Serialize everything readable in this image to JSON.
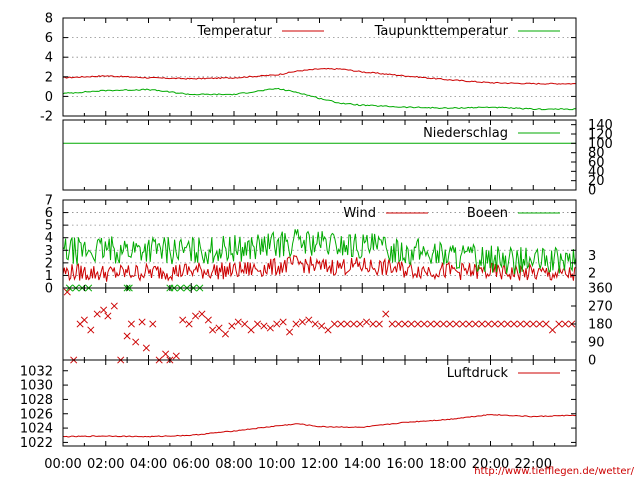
{
  "chart_data": [
    {
      "type": "line",
      "title": "",
      "xlabel": "",
      "ylabel": "",
      "ylim": [
        -2,
        8
      ],
      "yticks": [
        "-2",
        "0",
        "2",
        "4",
        "6",
        "8"
      ],
      "grid": true,
      "legend": "top-right",
      "series": [
        {
          "name": "Temperatur",
          "color": "#cc0000",
          "x": [
            0,
            2,
            4,
            6,
            8,
            10,
            11,
            12,
            13,
            14,
            16,
            18,
            20,
            22,
            24
          ],
          "values": [
            1.9,
            2.1,
            1.9,
            1.8,
            1.9,
            2.2,
            2.6,
            2.8,
            2.8,
            2.5,
            2.1,
            1.7,
            1.4,
            1.3,
            1.3
          ]
        },
        {
          "name": "Taupunkttemperatur",
          "color": "#00aa00",
          "x": [
            0,
            2,
            4,
            6,
            8,
            10,
            11,
            12,
            13,
            14,
            16,
            18,
            20,
            22,
            24
          ],
          "values": [
            0.3,
            0.6,
            0.7,
            0.2,
            0.2,
            0.8,
            0.4,
            -0.2,
            -0.7,
            -0.9,
            -1.1,
            -1.2,
            -1.1,
            -1.3,
            -1.3
          ]
        }
      ]
    },
    {
      "type": "line",
      "title": "",
      "ylim": [
        0,
        150
      ],
      "yticks_right": [
        "0",
        "20",
        "40",
        "60",
        "80",
        "100",
        "120",
        "140"
      ],
      "legend": "top-right",
      "series": [
        {
          "name": "Niederschlag",
          "color": "#00aa00",
          "x": [
            0,
            24
          ],
          "values": [
            100,
            100
          ]
        }
      ]
    },
    {
      "type": "line",
      "title": "",
      "ylim": [
        0,
        7
      ],
      "yticks": [
        "0",
        "1",
        "2",
        "3",
        "4",
        "5",
        "6",
        "7"
      ],
      "yticks_right": [
        "2",
        "3"
      ],
      "grid": true,
      "legend": "top-right",
      "series": [
        {
          "name": "Wind",
          "color": "#cc0000",
          "x": [
            0,
            2,
            4,
            6,
            8,
            10,
            11,
            12,
            14,
            16,
            18,
            20,
            22,
            24
          ],
          "values": [
            1.2,
            1.1,
            1.2,
            1.3,
            1.3,
            1.6,
            1.9,
            1.6,
            1.7,
            1.4,
            1.3,
            1.2,
            1.1,
            1.0
          ]
        },
        {
          "name": "Boeen",
          "color": "#00aa00",
          "x": [
            0,
            2,
            4,
            6,
            8,
            10,
            11,
            12,
            14,
            16,
            18,
            20,
            22,
            24
          ],
          "values": [
            2.8,
            2.9,
            3.0,
            2.8,
            3.0,
            3.3,
            3.6,
            3.4,
            3.2,
            2.9,
            2.5,
            2.2,
            2.0,
            2.0
          ]
        }
      ]
    },
    {
      "type": "scatter",
      "title": "",
      "ylim": [
        0,
        360
      ],
      "yticks_right": [
        "0",
        "90",
        "180",
        "270",
        "360"
      ],
      "series": [
        {
          "name": "",
          "color": "#cc0000",
          "x": [
            0.2,
            0.5,
            0.8,
            1.0,
            1.3,
            1.6,
            1.9,
            2.1,
            2.4,
            2.7,
            3.0,
            3.2,
            3.4,
            3.7,
            3.9,
            4.2,
            4.5,
            4.8,
            5.0,
            5.3,
            5.6,
            5.9,
            6.2,
            6.5,
            6.8,
            7.0,
            7.3,
            7.6,
            7.9,
            8.2,
            8.5,
            8.8,
            9.1,
            9.4,
            9.7,
            10.0,
            10.3,
            10.6,
            10.9,
            11.2,
            11.5,
            11.8,
            12.1,
            12.4,
            12.7,
            13.0,
            13.3,
            13.6,
            13.9,
            14.2,
            14.5,
            14.8,
            15.1,
            15.4,
            15.7,
            16.0,
            16.3,
            16.6,
            16.9,
            17.2,
            17.5,
            17.8,
            18.1,
            18.4,
            18.7,
            19.0,
            19.3,
            19.6,
            19.9,
            20.2,
            20.5,
            20.8,
            21.1,
            21.4,
            21.7,
            22.0,
            22.3,
            22.6,
            22.9,
            23.2,
            23.5,
            23.8
          ],
          "values": [
            340,
            0,
            180,
            200,
            150,
            230,
            250,
            220,
            270,
            0,
            120,
            180,
            90,
            190,
            60,
            180,
            0,
            30,
            0,
            20,
            200,
            180,
            220,
            230,
            200,
            150,
            160,
            130,
            170,
            190,
            180,
            150,
            180,
            170,
            160,
            180,
            190,
            140,
            180,
            190,
            200,
            180,
            170,
            150,
            180,
            180,
            180,
            180,
            180,
            190,
            180,
            180,
            230,
            180,
            180,
            180,
            180,
            180,
            180,
            180,
            180,
            180,
            180,
            180,
            180,
            180,
            180,
            180,
            180,
            180,
            180,
            180,
            180,
            180,
            180,
            180,
            180,
            180,
            150,
            180,
            180,
            180
          ]
        },
        {
          "name": "",
          "color": "#00aa00",
          "x": [
            0.3,
            0.6,
            0.9,
            1.2,
            3.0,
            3.1,
            5.0,
            5.2,
            5.5,
            5.8,
            6.1,
            6.4
          ],
          "values": [
            360,
            360,
            360,
            360,
            360,
            360,
            360,
            360,
            360,
            360,
            360,
            360
          ]
        }
      ]
    },
    {
      "type": "line",
      "title": "",
      "ylim": [
        1021.5,
        1033.5
      ],
      "yticks": [
        "1022",
        "1024",
        "1026",
        "1028",
        "1030",
        "1032"
      ],
      "legend": "top-right",
      "xticks": [
        "00:00",
        "02:00",
        "04:00",
        "06:00",
        "08:00",
        "10:00",
        "12:00",
        "14:00",
        "16:00",
        "18:00",
        "20:00",
        "22:00"
      ],
      "series": [
        {
          "name": "Luftdruck",
          "color": "#cc0000",
          "x": [
            0,
            2,
            4,
            6,
            8,
            10,
            11,
            12,
            14,
            16,
            18,
            20,
            22,
            24
          ],
          "values": [
            1022.8,
            1022.9,
            1022.8,
            1023.0,
            1023.6,
            1024.3,
            1024.6,
            1024.2,
            1024.1,
            1024.8,
            1025.2,
            1025.9,
            1025.6,
            1025.8
          ]
        }
      ]
    }
  ],
  "footer": {
    "credit": "http://www.tiefflegen.de/wetter/"
  }
}
